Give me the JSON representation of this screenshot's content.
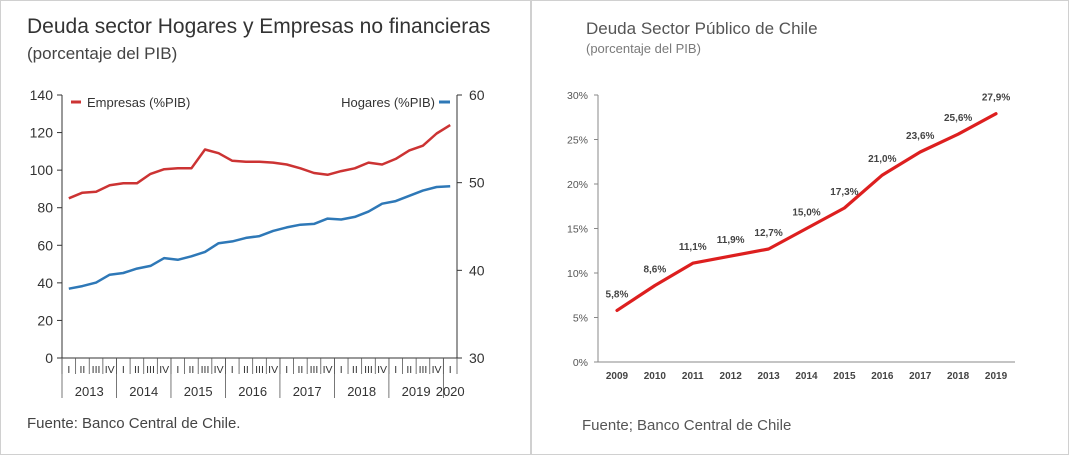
{
  "left_panel": {
    "title": "Deuda sector Hogares y Empresas no financieras",
    "subtitle": "(porcentaje del PIB)",
    "source": "Fuente: Banco Central de Chile."
  },
  "right_panel": {
    "title": "Deuda Sector Público de Chile",
    "subtitle": "(porcentaje del PIB)",
    "source": "Fuente; Banco Central de Chile"
  },
  "chart_data": [
    {
      "type": "line",
      "title": "Deuda sector Hogares y Empresas no financieras",
      "subtitle": "(porcentaje del PIB)",
      "quarter_labels": [
        "I",
        "II",
        "III",
        "IV",
        "I",
        "II",
        "III",
        "IV",
        "I",
        "II",
        "III",
        "IV",
        "I",
        "II",
        "III",
        "IV",
        "I",
        "II",
        "III",
        "IV",
        "I",
        "II",
        "III",
        "IV",
        "I",
        "II",
        "III",
        "IV",
        "I"
      ],
      "year_labels": [
        "2013",
        "2014",
        "2015",
        "2016",
        "2017",
        "2018",
        "2019",
        "2020"
      ],
      "left_axis": {
        "ylim": [
          0,
          140
        ],
        "ticks": [
          "0",
          "20",
          "40",
          "60",
          "80",
          "100",
          "120",
          "140"
        ]
      },
      "right_axis": {
        "ylim": [
          30,
          60
        ],
        "ticks": [
          "30",
          "40",
          "50",
          "60"
        ]
      },
      "legend": {
        "left": "top-left",
        "right": "top-right"
      },
      "series": [
        {
          "name": "Empresas (%PIB)",
          "axis": "left",
          "color": "#cc3333",
          "values": [
            85,
            88,
            88.5,
            92,
            93,
            93,
            98,
            100.5,
            101,
            101,
            111,
            109,
            105,
            104.5,
            104.5,
            104,
            103,
            101,
            98.5,
            97.5,
            99.5,
            101,
            104,
            103,
            106,
            110.5,
            113,
            119.5,
            124
          ]
        },
        {
          "name": "Hogares (%PIB)",
          "axis": "right",
          "color": "#2e78b7",
          "values": [
            37.9,
            38.2,
            38.6,
            39.5,
            39.7,
            40.2,
            40.5,
            41.4,
            41.2,
            41.6,
            42.1,
            43.1,
            43.3,
            43.7,
            43.9,
            44.5,
            44.9,
            45.2,
            45.3,
            45.9,
            45.8,
            46.1,
            46.7,
            47.6,
            47.9,
            48.5,
            49.1,
            49.5,
            49.6
          ]
        }
      ]
    },
    {
      "type": "line",
      "title": "Deuda Sector Público de Chile",
      "subtitle": "(porcentaje del PIB)",
      "categories": [
        "2009",
        "2010",
        "2011",
        "2012",
        "2013",
        "2014",
        "2015",
        "2016",
        "2017",
        "2018",
        "2019"
      ],
      "values": [
        5.8,
        8.6,
        11.1,
        11.9,
        12.7,
        15.0,
        17.3,
        21.0,
        23.6,
        25.6,
        27.9
      ],
      "data_labels": [
        "5,8%",
        "8,6%",
        "11,1%",
        "11,9%",
        "12,7%",
        "15,0%",
        "17,3%",
        "21,0%",
        "23,6%",
        "25,6%",
        "27,9%"
      ],
      "ylim": [
        0,
        30
      ],
      "y_ticks": [
        "0%",
        "5%",
        "10%",
        "15%",
        "20%",
        "25%",
        "30%"
      ],
      "color": "#dd1f1f",
      "grid": false
    }
  ]
}
